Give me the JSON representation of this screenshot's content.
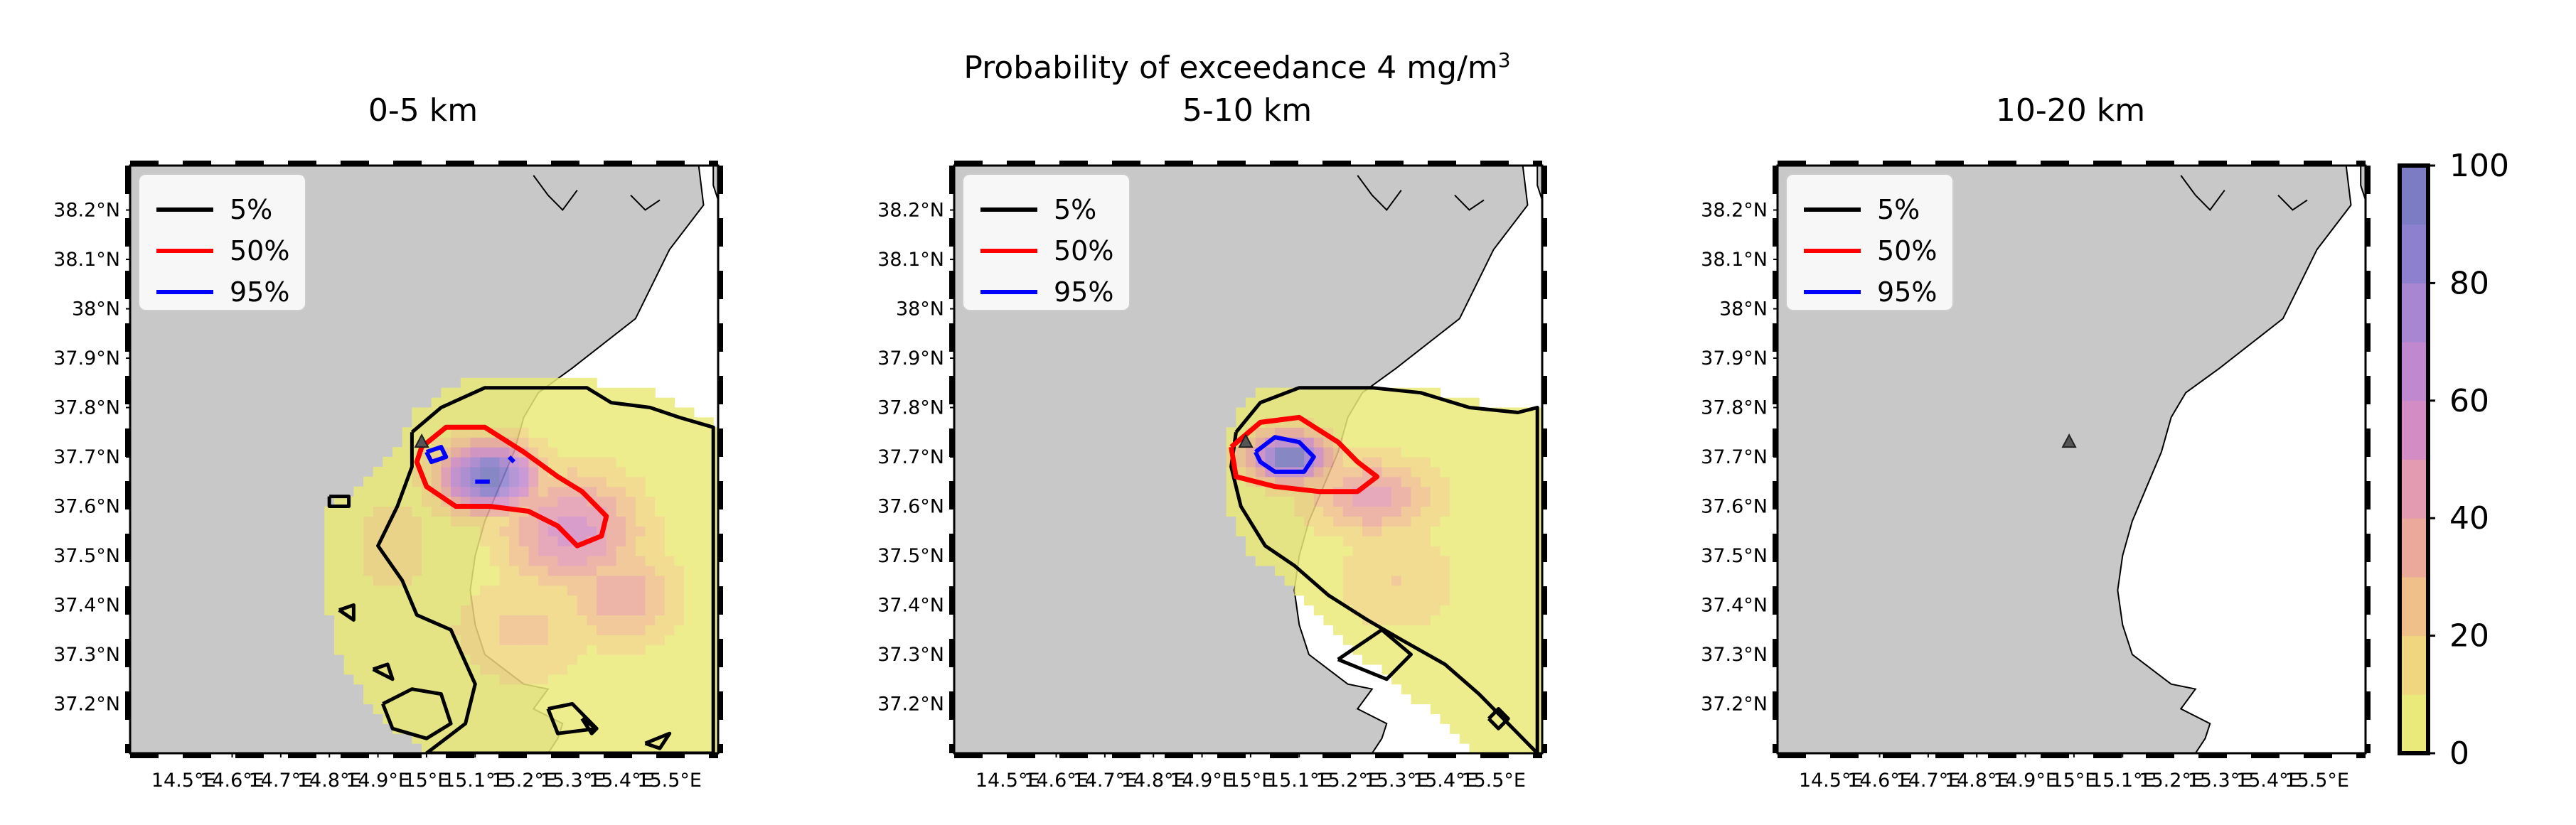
{
  "figure": {
    "suptitle_main": "Probability of exceedance 4 mg/m",
    "suptitle_sup": "3"
  },
  "colors": {
    "land": "#c8c8c8",
    "sea": "#ffffff",
    "contour_5": "#000000",
    "contour_50": "#ff0000",
    "contour_95": "#0000ff",
    "colormap": [
      "#eaea7a",
      "#efd67f",
      "#f0c08a",
      "#eaa99a",
      "#e29bb0",
      "#d38dc4",
      "#c089cf",
      "#a986d2",
      "#8d80cf",
      "#7b7cc3"
    ]
  },
  "chart_data": [
    {
      "type": "heatmap",
      "title": "0-5 km",
      "xlim": [
        14.39,
        15.6
      ],
      "ylim": [
        37.1,
        38.29
      ],
      "xticks": [
        "14.5°E",
        "14.6°E",
        "14.7°E",
        "14.8°E",
        "14.9°E",
        "15°E",
        "15.1°E",
        "15.2°E",
        "15.3°E",
        "15.4°E",
        "15.5°E"
      ],
      "yticks": [
        "37.2°N",
        "37.3°N",
        "37.4°N",
        "37.5°N",
        "37.6°N",
        "37.7°N",
        "37.8°N",
        "37.9°N",
        "38°N",
        "38.1°N",
        "38.2°N"
      ],
      "legend": [
        "5%",
        "50%",
        "95%"
      ],
      "legend_loc": "upper left",
      "vent": {
        "lon": 14.99,
        "lat": 37.73
      },
      "probability_blobs": [
        {
          "lon": 15.13,
          "lat": 37.66,
          "peak": 100,
          "sx": 0.1,
          "sy": 0.07
        },
        {
          "lon": 15.3,
          "lat": 37.55,
          "peak": 55,
          "sx": 0.14,
          "sy": 0.12
        },
        {
          "lon": 15.4,
          "lat": 37.42,
          "peak": 38,
          "sx": 0.12,
          "sy": 0.1
        },
        {
          "lon": 15.2,
          "lat": 37.35,
          "peak": 22,
          "sx": 0.16,
          "sy": 0.12
        },
        {
          "lon": 14.93,
          "lat": 37.52,
          "peak": 16,
          "sx": 0.1,
          "sy": 0.12
        }
      ],
      "probability_extent": [
        [
          14.97,
          37.79
        ],
        [
          15.08,
          37.86
        ],
        [
          15.3,
          37.86
        ],
        [
          15.48,
          37.83
        ],
        [
          15.6,
          37.77
        ],
        [
          15.6,
          37.1
        ],
        [
          15.0,
          37.1
        ],
        [
          14.9,
          37.18
        ],
        [
          14.82,
          37.3
        ],
        [
          14.78,
          37.48
        ],
        [
          14.78,
          37.58
        ],
        [
          14.88,
          37.66
        ],
        [
          14.94,
          37.72
        ]
      ],
      "contours": [
        {
          "level": "5%",
          "paths": [
            [
              [
                14.97,
                37.75
              ],
              [
                15.03,
                37.8
              ],
              [
                15.12,
                37.84
              ],
              [
                15.25,
                37.84
              ],
              [
                15.33,
                37.84
              ],
              [
                15.38,
                37.81
              ],
              [
                15.46,
                37.8
              ],
              [
                15.52,
                37.78
              ],
              [
                15.59,
                37.76
              ],
              [
                15.59,
                37.1
              ],
              [
                15.0,
                37.1
              ],
              [
                15.08,
                37.16
              ],
              [
                15.1,
                37.24
              ],
              [
                15.05,
                37.35
              ],
              [
                14.98,
                37.38
              ],
              [
                14.95,
                37.45
              ],
              [
                14.9,
                37.52
              ],
              [
                14.94,
                37.6
              ],
              [
                14.97,
                37.68
              ],
              [
                14.97,
                37.75
              ]
            ],
            [
              [
                14.8,
                37.62
              ],
              [
                14.84,
                37.62
              ],
              [
                14.84,
                37.6
              ],
              [
                14.8,
                37.6
              ],
              [
                14.8,
                37.62
              ]
            ],
            [
              [
                14.82,
                37.39
              ],
              [
                14.85,
                37.4
              ],
              [
                14.85,
                37.37
              ],
              [
                14.82,
                37.39
              ]
            ],
            [
              [
                14.89,
                37.27
              ],
              [
                14.92,
                37.28
              ],
              [
                14.93,
                37.25
              ],
              [
                14.89,
                37.27
              ]
            ],
            [
              [
                14.91,
                37.2
              ],
              [
                14.97,
                37.23
              ],
              [
                15.03,
                37.22
              ],
              [
                15.05,
                37.16
              ],
              [
                15.0,
                37.13
              ],
              [
                14.93,
                37.15
              ],
              [
                14.91,
                37.2
              ]
            ],
            [
              [
                15.25,
                37.19
              ],
              [
                15.3,
                37.2
              ],
              [
                15.35,
                37.15
              ],
              [
                15.27,
                37.14
              ],
              [
                15.25,
                37.19
              ]
            ],
            [
              [
                15.32,
                37.17
              ],
              [
                15.35,
                37.15
              ],
              [
                15.34,
                37.14
              ],
              [
                15.32,
                37.17
              ]
            ],
            [
              [
                15.45,
                37.12
              ],
              [
                15.5,
                37.14
              ],
              [
                15.48,
                37.11
              ],
              [
                15.45,
                37.12
              ]
            ]
          ]
        },
        {
          "level": "50%",
          "paths": [
            [
              [
                14.99,
                37.72
              ],
              [
                15.04,
                37.76
              ],
              [
                15.12,
                37.76
              ],
              [
                15.2,
                37.71
              ],
              [
                15.27,
                37.66
              ],
              [
                15.32,
                37.63
              ],
              [
                15.37,
                37.58
              ],
              [
                15.36,
                37.54
              ],
              [
                15.31,
                37.52
              ],
              [
                15.27,
                37.56
              ],
              [
                15.21,
                37.59
              ],
              [
                15.13,
                37.6
              ],
              [
                15.06,
                37.6
              ],
              [
                15.0,
                37.64
              ],
              [
                14.98,
                37.69
              ],
              [
                14.99,
                37.72
              ]
            ]
          ]
        },
        {
          "level": "95%",
          "paths": [
            [
              [
                15.0,
                37.71
              ],
              [
                15.03,
                37.72
              ],
              [
                15.04,
                37.7
              ],
              [
                15.01,
                37.69
              ],
              [
                15.0,
                37.71
              ]
            ],
            [
              [
                15.1,
                37.65
              ],
              [
                15.13,
                37.65
              ]
            ],
            [
              [
                15.17,
                37.7
              ],
              [
                15.18,
                37.69
              ]
            ]
          ]
        }
      ]
    },
    {
      "type": "heatmap",
      "title": "5-10 km",
      "xlim": [
        14.39,
        15.6
      ],
      "ylim": [
        37.1,
        38.29
      ],
      "xticks": [
        "14.5°E",
        "14.6°E",
        "14.7°E",
        "14.8°E",
        "14.9°E",
        "15°E",
        "15.1°E",
        "15.2°E",
        "15.3°E",
        "15.4°E",
        "15.5°E"
      ],
      "yticks": [
        "37.2°N",
        "37.3°N",
        "37.4°N",
        "37.5°N",
        "37.6°N",
        "37.7°N",
        "37.8°N",
        "37.9°N",
        "38°N",
        "38.1°N",
        "38.2°N"
      ],
      "legend": [
        "5%",
        "50%",
        "95%"
      ],
      "legend_loc": "upper left",
      "vent": {
        "lon": 14.99,
        "lat": 37.73
      },
      "probability_blobs": [
        {
          "lon": 15.08,
          "lat": 37.7,
          "peak": 100,
          "sx": 0.08,
          "sy": 0.05
        },
        {
          "lon": 15.25,
          "lat": 37.62,
          "peak": 45,
          "sx": 0.13,
          "sy": 0.08
        },
        {
          "lon": 15.3,
          "lat": 37.45,
          "peak": 20,
          "sx": 0.14,
          "sy": 0.12
        }
      ],
      "probability_extent": [
        [
          14.94,
          37.73
        ],
        [
          15.0,
          37.83
        ],
        [
          15.15,
          37.85
        ],
        [
          15.35,
          37.84
        ],
        [
          15.5,
          37.8
        ],
        [
          15.6,
          37.8
        ],
        [
          15.6,
          37.1
        ],
        [
          15.45,
          37.1
        ],
        [
          15.35,
          37.2
        ],
        [
          15.2,
          37.32
        ],
        [
          15.1,
          37.43
        ],
        [
          15.0,
          37.5
        ],
        [
          14.95,
          37.6
        ]
      ],
      "contours": [
        {
          "level": "5%",
          "paths": [
            [
              [
                14.97,
                37.75
              ],
              [
                15.02,
                37.81
              ],
              [
                15.1,
                37.84
              ],
              [
                15.25,
                37.84
              ],
              [
                15.35,
                37.83
              ],
              [
                15.45,
                37.8
              ],
              [
                15.55,
                37.79
              ],
              [
                15.59,
                37.8
              ],
              [
                15.59,
                37.1
              ],
              [
                15.57,
                37.12
              ],
              [
                15.47,
                37.22
              ],
              [
                15.4,
                37.28
              ],
              [
                15.31,
                37.33
              ],
              [
                15.24,
                37.37
              ],
              [
                15.16,
                37.42
              ],
              [
                15.09,
                37.48
              ],
              [
                15.03,
                37.52
              ],
              [
                14.98,
                37.6
              ],
              [
                14.96,
                37.68
              ],
              [
                14.97,
                37.75
              ]
            ],
            [
              [
                15.18,
                37.29
              ],
              [
                15.27,
                37.35
              ],
              [
                15.33,
                37.3
              ],
              [
                15.28,
                37.25
              ],
              [
                15.18,
                37.29
              ]
            ],
            [
              [
                15.49,
                37.17
              ],
              [
                15.51,
                37.19
              ],
              [
                15.53,
                37.17
              ],
              [
                15.51,
                37.15
              ],
              [
                15.49,
                37.17
              ]
            ]
          ]
        },
        {
          "level": "50%",
          "paths": [
            [
              [
                14.96,
                37.72
              ],
              [
                15.02,
                37.77
              ],
              [
                15.1,
                37.78
              ],
              [
                15.18,
                37.73
              ],
              [
                15.22,
                37.69
              ],
              [
                15.26,
                37.66
              ],
              [
                15.22,
                37.63
              ],
              [
                15.14,
                37.63
              ],
              [
                15.05,
                37.64
              ],
              [
                14.97,
                37.66
              ],
              [
                14.96,
                37.72
              ]
            ]
          ]
        },
        {
          "level": "95%",
          "paths": [
            [
              [
                15.01,
                37.71
              ],
              [
                15.05,
                37.74
              ],
              [
                15.1,
                37.73
              ],
              [
                15.13,
                37.7
              ],
              [
                15.11,
                37.67
              ],
              [
                15.05,
                37.67
              ],
              [
                15.02,
                37.69
              ],
              [
                15.01,
                37.71
              ]
            ]
          ]
        }
      ]
    },
    {
      "type": "heatmap",
      "title": "10-20 km",
      "xlim": [
        14.39,
        15.6
      ],
      "ylim": [
        37.1,
        38.29
      ],
      "xticks": [
        "14.5°E",
        "14.6°E",
        "14.7°E",
        "14.8°E",
        "14.9°E",
        "15°E",
        "15.1°E",
        "15.2°E",
        "15.3°E",
        "15.4°E",
        "15.5°E"
      ],
      "yticks": [
        "37.2°N",
        "37.3°N",
        "37.4°N",
        "37.5°N",
        "37.6°N",
        "37.7°N",
        "37.8°N",
        "37.9°N",
        "38°N",
        "38.1°N",
        "38.2°N"
      ],
      "legend": [
        "5%",
        "50%",
        "95%"
      ],
      "legend_loc": "upper left",
      "vent": {
        "lon": 14.99,
        "lat": 37.73
      },
      "probability_blobs": [],
      "probability_extent": [],
      "contours": []
    }
  ],
  "colorbar": {
    "min": 0,
    "max": 100,
    "ticks": [
      0,
      20,
      40,
      60,
      80,
      100
    ],
    "tick_labels": [
      "0",
      "20",
      "40",
      "60",
      "80",
      "100"
    ]
  }
}
